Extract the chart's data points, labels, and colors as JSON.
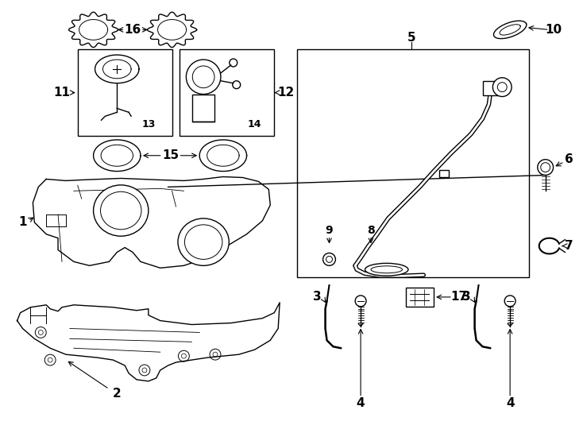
{
  "bg_color": "#ffffff",
  "line_color": "#000000",
  "fig_width": 7.34,
  "fig_height": 5.4
}
